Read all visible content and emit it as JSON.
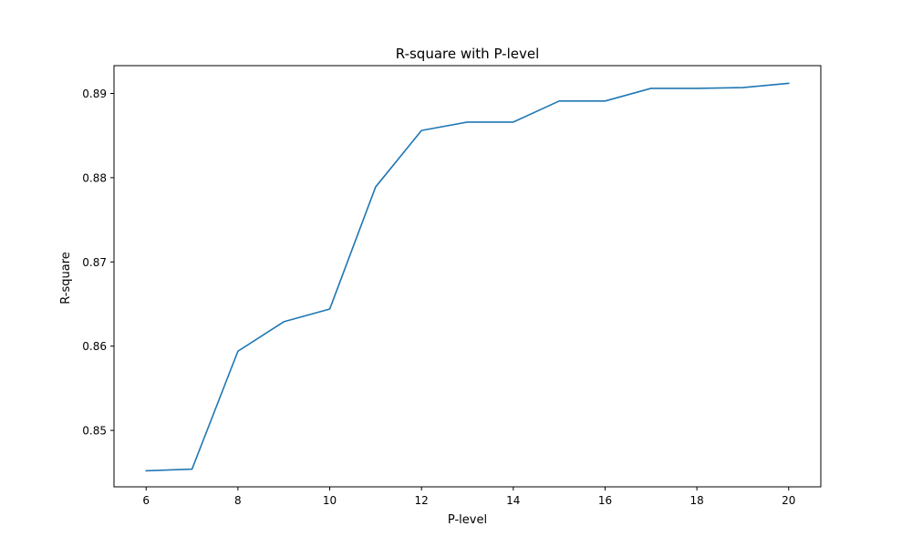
{
  "chart_data": {
    "type": "line",
    "title": "R-square with P-level",
    "xlabel": "P-level",
    "ylabel": "R-square",
    "xlim": [
      5.3,
      20.7
    ],
    "ylim": [
      0.8433,
      0.8933
    ],
    "xticks": [
      6,
      8,
      10,
      12,
      14,
      16,
      18,
      20
    ],
    "yticks": [
      0.85,
      0.86,
      0.87,
      0.88,
      0.89
    ],
    "ytick_labels": [
      "0.85",
      "0.86",
      "0.87",
      "0.88",
      "0.89"
    ],
    "grid": false,
    "series": [
      {
        "color": "#1f77b4",
        "x": [
          6,
          7,
          8,
          9,
          10,
          11,
          12,
          13,
          14,
          15,
          16,
          17,
          18,
          19,
          20
        ],
        "y": [
          0.8452,
          0.8454,
          0.8594,
          0.8629,
          0.8644,
          0.8789,
          0.8856,
          0.8866,
          0.8866,
          0.8891,
          0.8891,
          0.8906,
          0.8906,
          0.8907,
          0.8912
        ]
      }
    ]
  }
}
